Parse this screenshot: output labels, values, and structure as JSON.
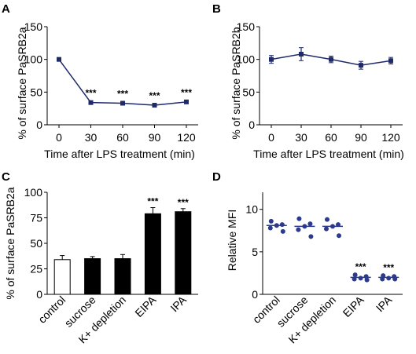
{
  "colors": {
    "line": "#1f2a6b",
    "dot": "#2b3a8c",
    "bar_dark": "#000000",
    "bar_light": "#ffffff",
    "axis": "#000000"
  },
  "chart_data": [
    {
      "panel": "A",
      "type": "line",
      "x": [
        0,
        30,
        60,
        90,
        120
      ],
      "x_ticks": [
        "0",
        "30",
        "60",
        "90",
        "120"
      ],
      "series": [
        {
          "values": [
            100,
            34,
            33,
            30,
            35
          ],
          "errors": [
            2,
            2,
            2,
            2,
            2
          ]
        }
      ],
      "annotations": [
        "",
        "***",
        "***",
        "***",
        "***"
      ],
      "xlabel": "Time after LPS treatment (min)",
      "ylabel": "% of surface PaSRB2a",
      "ylim": [
        0,
        150
      ],
      "y_ticks": [
        "0",
        "50",
        "100",
        "150"
      ]
    },
    {
      "panel": "B",
      "type": "line",
      "x": [
        0,
        30,
        60,
        90,
        120
      ],
      "x_ticks": [
        "0",
        "30",
        "60",
        "90",
        "120"
      ],
      "series": [
        {
          "values": [
            100,
            108,
            100,
            91,
            98
          ],
          "errors": [
            6,
            10,
            5,
            6,
            5
          ]
        }
      ],
      "annotations": [
        "",
        "",
        "",
        "",
        ""
      ],
      "xlabel": "Time after LPS treatment (min)",
      "ylabel": "% of surface PaSRB2b",
      "ylim": [
        0,
        150
      ],
      "y_ticks": [
        "0",
        "50",
        "100",
        "150"
      ]
    },
    {
      "panel": "C",
      "type": "bar",
      "categories": [
        "control",
        "sucrose",
        "K+ depletion",
        "EIPA",
        "IPA"
      ],
      "values": [
        34,
        35,
        35,
        79,
        81
      ],
      "errors": [
        4,
        2,
        4,
        6,
        3
      ],
      "fills": [
        "white",
        "black",
        "black",
        "black",
        "black"
      ],
      "annotations": [
        "",
        "",
        "",
        "***",
        "***"
      ],
      "ylabel": "% of surface PaSRB2a",
      "ylim": [
        0,
        100
      ],
      "y_ticks": [
        "0",
        "25",
        "50",
        "75",
        "100"
      ]
    },
    {
      "panel": "D",
      "type": "scatter",
      "categories": [
        "control",
        "sucrose",
        "K+ depletion",
        "EIPA",
        "IPA"
      ],
      "points": [
        [
          8.6,
          8.2,
          8.1,
          7.8,
          7.4
        ],
        [
          8.9,
          8.3,
          8.0,
          7.6,
          6.8
        ],
        [
          8.8,
          8.2,
          8.0,
          7.7,
          6.9
        ],
        [
          2.3,
          2.1,
          1.9,
          1.8,
          1.7
        ],
        [
          2.2,
          2.1,
          1.9,
          1.8,
          1.8
        ]
      ],
      "means": [
        8.1,
        8.0,
        8.0,
        2.0,
        2.0
      ],
      "annotations": [
        "",
        "",
        "",
        "***",
        "***"
      ],
      "ylabel": "Relative MFI",
      "ylim": [
        0,
        12
      ],
      "y_ticks": [
        "0",
        "5",
        "10"
      ]
    }
  ]
}
